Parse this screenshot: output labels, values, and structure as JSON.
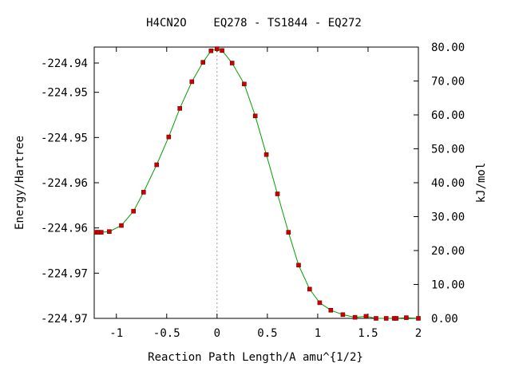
{
  "chart_data": {
    "type": "line",
    "title": "H4CN2O    EQ278 - TS1844 - EQ272",
    "xlabel": "Reaction Path Length/A amu^{1/2}",
    "ylabel": "Energy/Hartree",
    "y2label": "kJ/mol",
    "xlim": [
      -1.22,
      2.0
    ],
    "ylim_kj": [
      0,
      80
    ],
    "x_ticks": [
      "-1",
      "-0.5",
      "0",
      "0.5",
      "1",
      "1.5",
      "2"
    ],
    "y_ticks_left": [
      "-224.97",
      "-224.97",
      "-224.96",
      "-224.96",
      "-224.95",
      "-224.95",
      "-224.94"
    ],
    "y_ticks_right": [
      "0.00",
      "10.00",
      "20.00",
      "30.00",
      "40.00",
      "50.00",
      "60.00",
      "70.00",
      "80.00"
    ],
    "ts_marker_x": 0,
    "grid": false,
    "colors": {
      "curve": "#00a000",
      "points": "#cc0000",
      "reference_line": "#9a9a9a"
    },
    "series": [
      {
        "x": [
          -1.2,
          -1.18,
          -1.15,
          -1.07,
          -0.95,
          -0.83,
          -0.73,
          -0.6,
          -0.48,
          -0.37,
          -0.25,
          -0.14,
          -0.06,
          0.0,
          0.05,
          0.15,
          0.27,
          0.38,
          0.49,
          0.6,
          0.71,
          0.81,
          0.92,
          1.02,
          1.13,
          1.25,
          1.37,
          1.48,
          1.58,
          1.68,
          1.76,
          1.78,
          1.88,
          2.0
        ],
        "y": [
          25.4,
          25.4,
          25.4,
          25.6,
          27.4,
          31.6,
          37.2,
          45.3,
          53.5,
          61.9,
          69.8,
          75.5,
          78.9,
          79.5,
          79.0,
          75.3,
          69.1,
          59.7,
          48.3,
          36.7,
          25.4,
          15.7,
          8.6,
          4.6,
          2.4,
          1.1,
          0.3,
          0.6,
          0.0,
          0.0,
          0.0,
          0.0,
          0.2,
          0.0
        ]
      }
    ]
  }
}
